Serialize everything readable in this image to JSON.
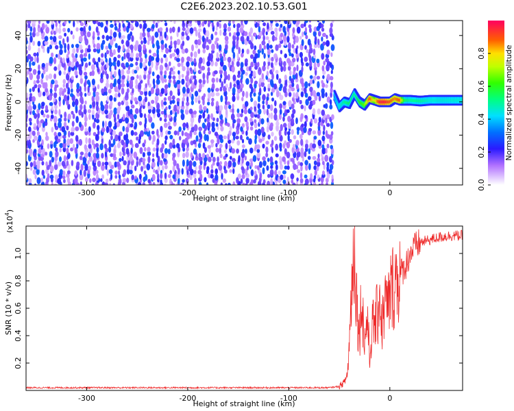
{
  "title": "C2E6.2023.202.10.53.G01",
  "colorbar": {
    "label": "Normalized spectral amplitude",
    "ticks": [
      "0.0",
      "0.2",
      "0.4",
      "0.6",
      "0.8"
    ],
    "tick_values": [
      0.0,
      0.2,
      0.4,
      0.6,
      0.8
    ],
    "range": [
      0,
      1
    ]
  },
  "chart_data": [
    {
      "type": "heatmap",
      "xlabel": "Height of straight line (km)",
      "ylabel": "Frequency (Hz)",
      "xlim": [
        -360,
        72
      ],
      "ylim": [
        -50,
        49
      ],
      "xticks": [
        -300,
        -200,
        -100,
        0
      ],
      "xtick_labels": [
        "-300",
        "-200",
        "-100",
        "0"
      ],
      "yticks": [
        -40,
        -20,
        0,
        20,
        40
      ],
      "ytick_labels": [
        "-40",
        "-20",
        "0",
        "20",
        "40"
      ],
      "noise_region": {
        "x_range": [
          -360,
          -55
        ],
        "freq_range": [
          -50,
          49
        ],
        "amplitude": [
          0.0,
          0.3
        ]
      },
      "signal_track": {
        "x": [
          -55,
          -50,
          -45,
          -40,
          -35,
          -30,
          -25,
          -20,
          -15,
          -10,
          -5,
          0,
          5,
          10,
          15,
          20,
          30,
          40,
          50,
          60,
          72
        ],
        "freq": [
          4,
          -3,
          0,
          -1,
          5,
          0,
          -2,
          2,
          1,
          0,
          0,
          0,
          2,
          1,
          1,
          1,
          0.5,
          1,
          1,
          1,
          1
        ],
        "amplitude": [
          0.3,
          0.45,
          0.5,
          0.55,
          0.5,
          0.6,
          0.65,
          0.9,
          0.75,
          0.95,
          0.95,
          0.9,
          0.85,
          0.9,
          0.55,
          0.5,
          0.5,
          0.45,
          0.45,
          0.45,
          0.45
        ]
      }
    },
    {
      "type": "line",
      "xlabel": "Height of straight line (km)",
      "ylabel": "SNR (10 * v/v)",
      "y_multiplier_label": "(x10",
      "y_multiplier_exp": "4",
      "y_multiplier_close": ")",
      "xlim": [
        -360,
        72
      ],
      "ylim": [
        0,
        1.2
      ],
      "xticks": [
        -300,
        -200,
        -100,
        0
      ],
      "xtick_labels": [
        "-300",
        "-200",
        "-100",
        "0"
      ],
      "yticks": [
        0.2,
        0.4,
        0.6,
        0.8,
        1.0
      ],
      "ytick_labels": [
        "0.2",
        "0.4",
        "0.6",
        "0.8",
        "1.0"
      ],
      "color": "#ee2a2a",
      "series": [
        {
          "x": [
            -360,
            -300,
            -200,
            -100,
            -60,
            -50,
            -45,
            -42,
            -40,
            -38,
            -35,
            -32,
            -30,
            -28,
            -25,
            -22,
            -20,
            -18,
            -15,
            -12,
            -10,
            -8,
            -5,
            -2,
            0,
            5,
            10,
            15,
            20,
            25,
            30,
            40,
            50,
            60,
            72
          ],
          "y": [
            0.02,
            0.02,
            0.02,
            0.02,
            0.02,
            0.03,
            0.06,
            0.12,
            0.35,
            0.75,
            1.05,
            0.55,
            0.4,
            0.7,
            0.35,
            0.55,
            0.2,
            0.45,
            0.5,
            0.55,
            0.75,
            0.45,
            0.65,
            0.6,
            0.7,
            0.8,
            0.85,
            0.9,
            1.0,
            1.05,
            1.08,
            1.1,
            1.12,
            1.13,
            1.13
          ]
        }
      ]
    }
  ]
}
